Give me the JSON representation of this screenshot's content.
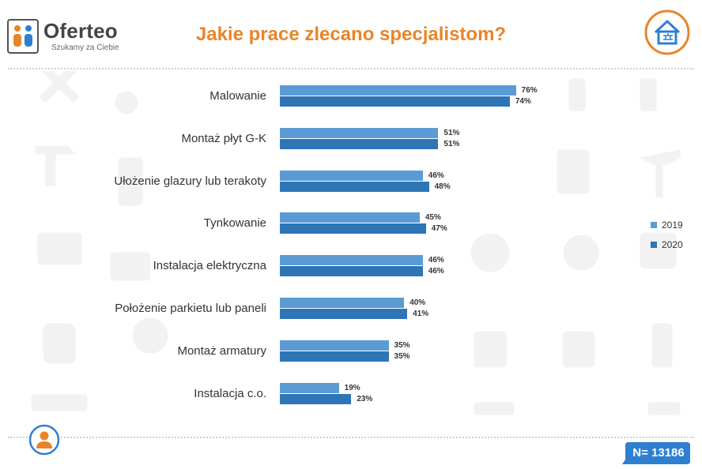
{
  "brand": {
    "name": "Oferteo",
    "tagline": "Szukamy za Ciebie"
  },
  "sample_size": "N= 13186",
  "colors": {
    "title": "#E8852B",
    "series_2019": "#5B9BD5",
    "series_2020": "#2E75B6",
    "accent_blue": "#2F7FD0",
    "accent_orange": "#E8852B"
  },
  "icons": [
    "logo-icon",
    "house-icon",
    "worker-avatar-icon",
    "tools-background-icons"
  ],
  "chart_data": {
    "type": "bar",
    "orientation": "horizontal",
    "title": "Jakie prace zlecano specjalistom?",
    "categories": [
      "Malowanie",
      "Montaż płyt G-K",
      "Ułożenie glazury lub terakoty",
      "Tynkowanie",
      "Instalacja elektryczna",
      "Położenie parkietu lub paneli",
      "Montaż armatury",
      "Instalacja c.o."
    ],
    "series": [
      {
        "name": "2019",
        "values": [
          76,
          51,
          46,
          45,
          46,
          40,
          35,
          19
        ],
        "labels": [
          "76%",
          "51%",
          "46%",
          "45%",
          "46%",
          "40%",
          "35%",
          "19%"
        ]
      },
      {
        "name": "2020",
        "values": [
          74,
          51,
          48,
          47,
          46,
          41,
          35,
          23
        ],
        "labels": [
          "74%",
          "51%",
          "48%",
          "47%",
          "46%",
          "41%",
          "35%",
          "23%"
        ]
      }
    ],
    "xlim": [
      0,
      100
    ],
    "legend_position": "right",
    "grid": false
  }
}
